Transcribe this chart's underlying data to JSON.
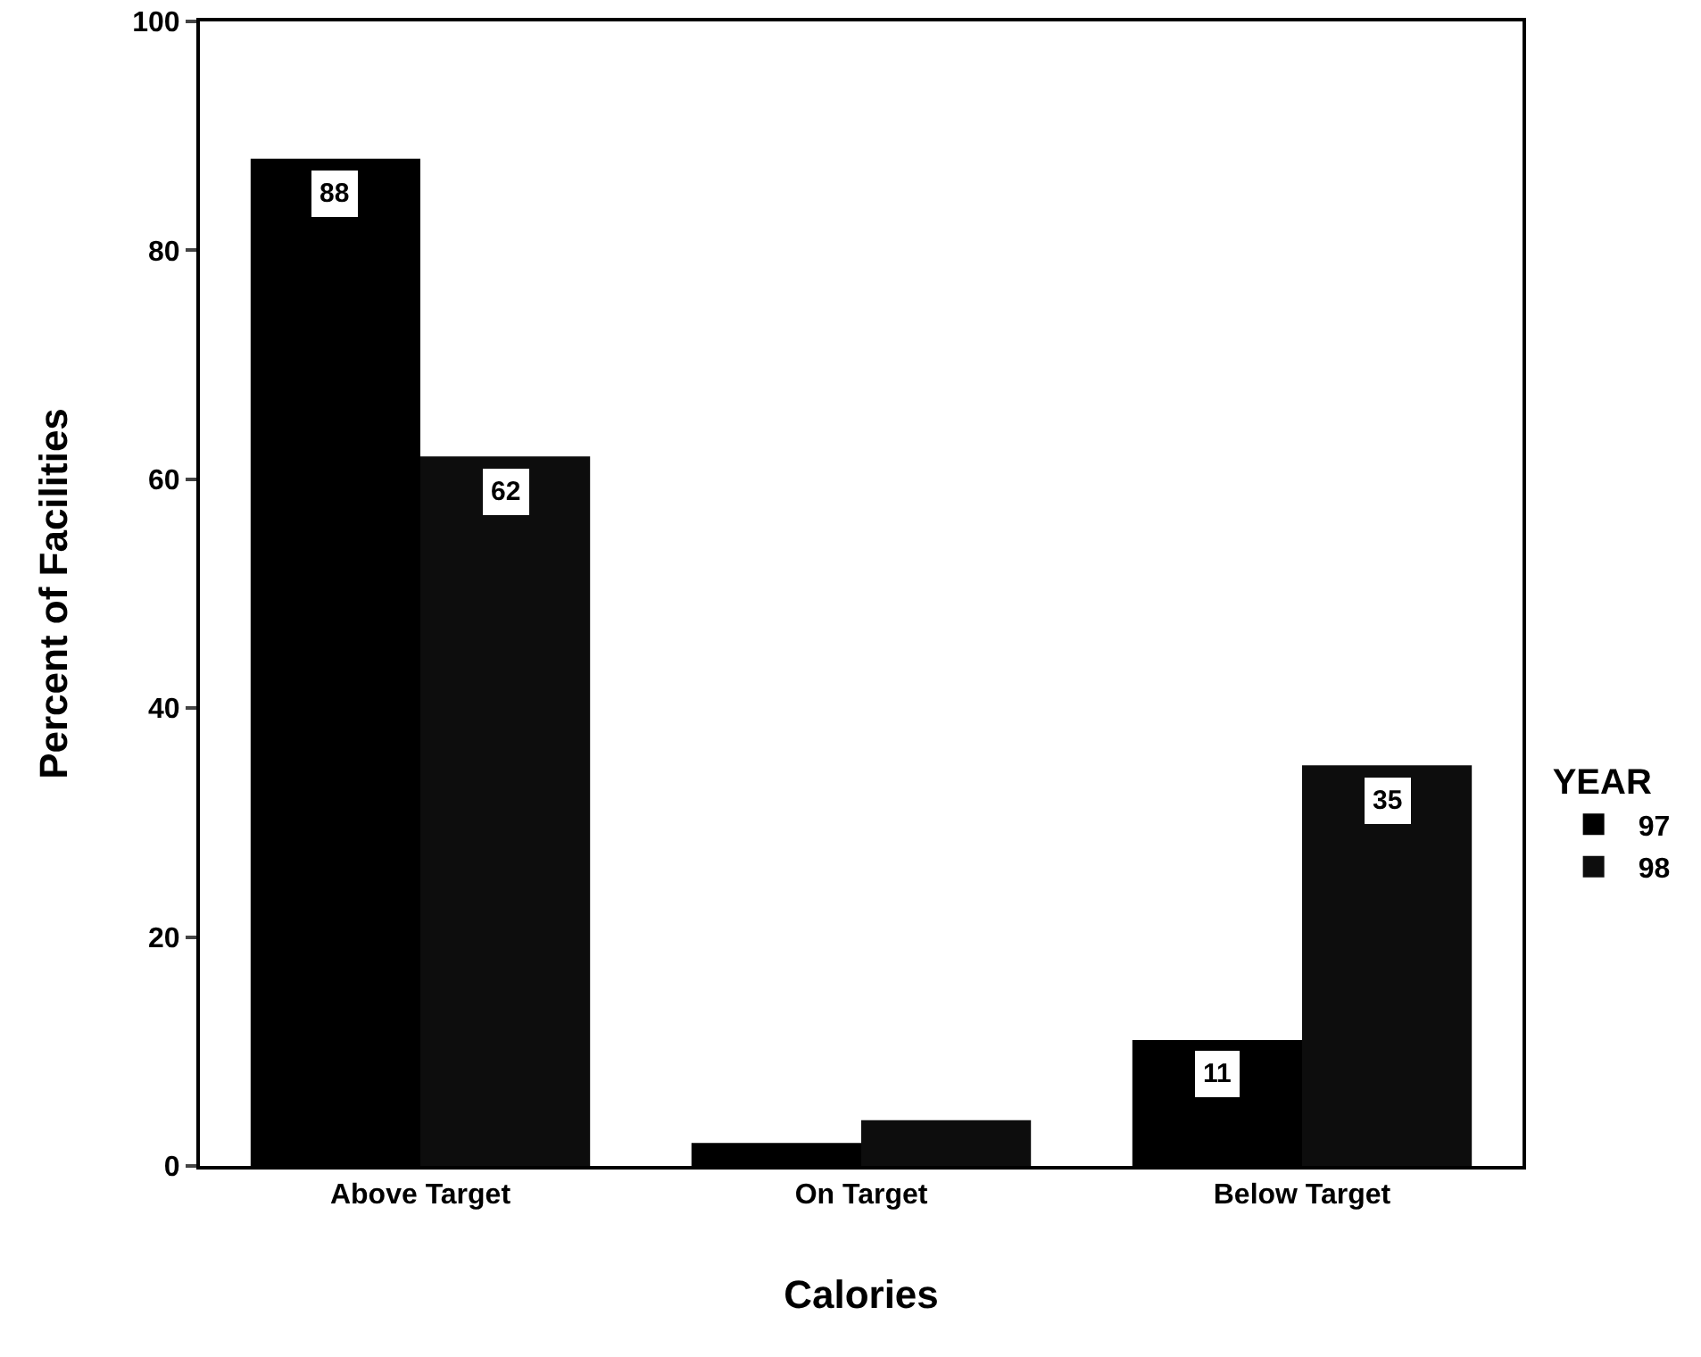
{
  "chart_data": {
    "type": "bar",
    "xlabel": "Calories",
    "ylabel": "Percent of Facilities",
    "legend_title": "YEAR",
    "categories": [
      "Above Target",
      "On Target",
      "Below Target"
    ],
    "series": [
      {
        "name": "97",
        "color": "#000000",
        "values": [
          88,
          2,
          11
        ],
        "value_labels": [
          "88",
          null,
          "11"
        ]
      },
      {
        "name": "98",
        "color": "#0d0d0d",
        "values": [
          62,
          4,
          35
        ],
        "value_labels": [
          "62",
          null,
          "35"
        ]
      }
    ],
    "ylim": [
      0,
      100
    ],
    "yticks": [
      0,
      20,
      40,
      60,
      80,
      100
    ],
    "grid": false,
    "legend": "right"
  }
}
